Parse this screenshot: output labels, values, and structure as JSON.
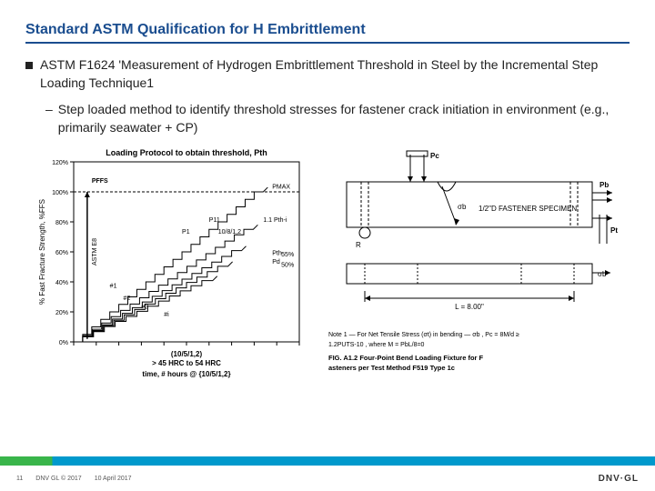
{
  "title": "Standard ASTM Qualification for H Embrittlement",
  "bullet1": "ASTM F1624 'Measurement of Hydrogen Embrittlement Threshold in Steel by the Incremental Step Loading Technique1",
  "bullet2": "Step loaded method to identify threshold stresses for fastener crack initiation in environment (e.g., primarily seawater + CP)",
  "chart": {
    "title": "Loading Protocol to obtain threshold, Pth",
    "ylabel": "% Fast Fracture Strength, %FFS",
    "xlabel": "time, # hours @ {10/5/1,2}",
    "subtitle_top": "(10/5/1,2)",
    "subtitle_bottom": "> 45 HRC to 54 HRC",
    "ylim": [
      0,
      120
    ],
    "ytick_step": 20,
    "xlim": [
      0,
      100
    ],
    "background": "#ffffff",
    "axis_color": "#000000",
    "line_color": "#000000",
    "font_size_title": 9,
    "font_size_axis": 8,
    "labels": {
      "pffs": "PFFS",
      "pmax": "PMAX",
      "p1": "P1",
      "p11": "P11",
      "p11_frac": "1.1 Pth-i",
      "step_frac": "10/8/1,2",
      "n1": "#1",
      "n2": "#2",
      "n3": "#3",
      "ni": "#i",
      "pth": "Pth",
      "pd": "Pd",
      "pct55": "55%",
      "pct50": "50%",
      "astm_e8": "ASTM E8"
    },
    "series": [
      {
        "start_x": 4,
        "steps": 20,
        "step_w": 4.0,
        "step_h": 5.0,
        "top": 100
      },
      {
        "start_x": 4,
        "steps": 18,
        "step_w": 4.2,
        "step_h": 4.2,
        "top": 75
      },
      {
        "start_x": 4,
        "steps": 16,
        "step_w": 4.4,
        "step_h": 3.8,
        "top": 62
      },
      {
        "start_x": 4,
        "steps": 14,
        "step_w": 4.6,
        "step_h": 3.6,
        "top": 55
      },
      {
        "start_x": 4,
        "steps": 12,
        "step_w": 4.8,
        "step_h": 3.4,
        "top": 50
      }
    ]
  },
  "diagram": {
    "labels": {
      "pc": "Pc",
      "pb": "Pb",
      "pt": "Pt",
      "r": "R",
      "sigma_b": "σb",
      "spec": "1/2\"D FASTENER SPECIMEN",
      "L": "L = 8.00\"",
      "note1": "Note 1 — For Net Tensile Stress (σt) in bending — σb , Pc = 8M/d ≥",
      "note2": "1.2PUTS-10 , where M = PbL/8=0",
      "caption": "FIG. A1.2  Four-Point Bend Loading Fixture for Fasteners per Test Method F519 Type 1c"
    },
    "line_color": "#000000",
    "background": "#ffffff",
    "font_size": 8
  },
  "footer": {
    "page": "11",
    "copyright": "DNV GL © 2017",
    "date": "10 April 2017",
    "logo": "DNV·GL"
  }
}
